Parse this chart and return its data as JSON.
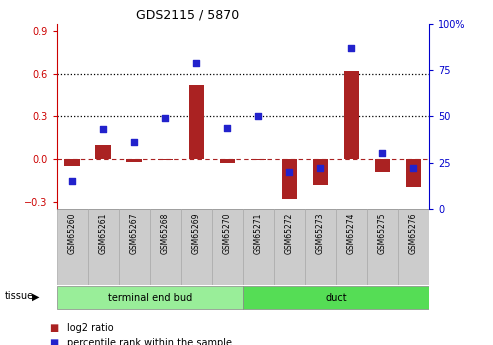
{
  "title": "GDS2115 / 5870",
  "samples": [
    "GSM65260",
    "GSM65261",
    "GSM65267",
    "GSM65268",
    "GSM65269",
    "GSM65270",
    "GSM65271",
    "GSM65272",
    "GSM65273",
    "GSM65274",
    "GSM65275",
    "GSM65276"
  ],
  "log2_ratio": [
    -0.05,
    0.1,
    -0.02,
    -0.01,
    0.52,
    -0.03,
    -0.01,
    -0.28,
    -0.18,
    0.62,
    -0.09,
    -0.2
  ],
  "percentile_rank": [
    15,
    43,
    36,
    49,
    79,
    44,
    50,
    20,
    22,
    87,
    30,
    22
  ],
  "groups": [
    {
      "label": "terminal end bud",
      "start": 0,
      "end": 5,
      "color": "#88ee88"
    },
    {
      "label": "duct",
      "start": 6,
      "end": 11,
      "color": "#44cc44"
    }
  ],
  "left_ylim": [
    -0.35,
    0.95
  ],
  "right_ylim": [
    0,
    100
  ],
  "left_yticks": [
    -0.3,
    0.0,
    0.3,
    0.6,
    0.9
  ],
  "right_yticks": [
    0,
    25,
    50,
    75,
    100
  ],
  "hlines": [
    0.3,
    0.6
  ],
  "bar_color": "#aa2222",
  "dot_color": "#2222cc",
  "background_color": "#ffffff",
  "tissue_label": "tissue",
  "legend_log2": "log2 ratio",
  "legend_pct": "percentile rank within the sample",
  "sample_box_color": "#cccccc",
  "right_axis_color": "#0000cc",
  "left_axis_color": "#cc0000"
}
